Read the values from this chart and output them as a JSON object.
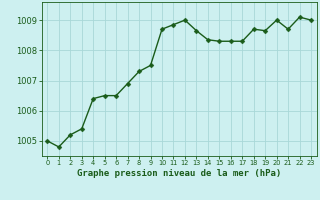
{
  "x": [
    0,
    1,
    2,
    3,
    4,
    5,
    6,
    7,
    8,
    9,
    10,
    11,
    12,
    13,
    14,
    15,
    16,
    17,
    18,
    19,
    20,
    21,
    22,
    23
  ],
  "y": [
    1005.0,
    1004.8,
    1005.2,
    1005.4,
    1006.4,
    1006.5,
    1006.5,
    1006.9,
    1007.3,
    1007.5,
    1008.7,
    1008.85,
    1009.0,
    1008.65,
    1008.35,
    1008.3,
    1008.3,
    1008.3,
    1008.7,
    1008.65,
    1009.0,
    1008.7,
    1009.1,
    1009.0
  ],
  "line_color": "#1a5c1a",
  "marker_color": "#1a5c1a",
  "background_color": "#cdf0f0",
  "grid_color": "#a8d8d8",
  "xlabel": "Graphe pression niveau de la mer (hPa)",
  "xlabel_color": "#1a5c1a",
  "tick_color": "#1a5c1a",
  "ylim": [
    1004.5,
    1009.6
  ],
  "yticks": [
    1005,
    1006,
    1007,
    1008,
    1009
  ],
  "xticks": [
    0,
    1,
    2,
    3,
    4,
    5,
    6,
    7,
    8,
    9,
    10,
    11,
    12,
    13,
    14,
    15,
    16,
    17,
    18,
    19,
    20,
    21,
    22,
    23
  ],
  "marker_size": 2.5,
  "line_width": 1.0,
  "xlabel_fontsize": 6.5,
  "ytick_fontsize": 6,
  "xtick_fontsize": 4.8
}
